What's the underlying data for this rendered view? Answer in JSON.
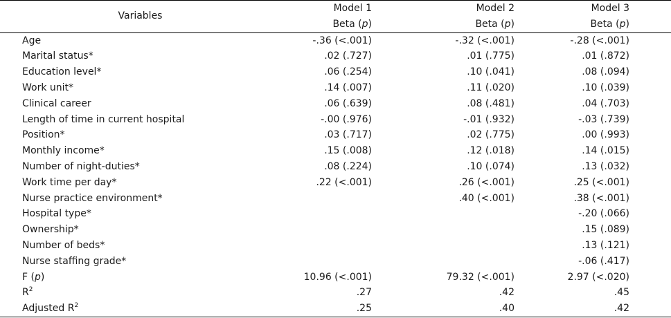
{
  "header": {
    "variables": "Variables",
    "models": [
      "Model 1",
      "Model 2",
      "Model 3"
    ],
    "beta_label": "Beta (",
    "p_label": "p",
    "beta_close": ")"
  },
  "rows": [
    {
      "label": "Age",
      "m1": "-.36 (<.001)",
      "m2": "-.32 (<.001)",
      "m3": "-.28 (<.001)"
    },
    {
      "label": "Marital status*",
      "m1": ".02 (.727)",
      "m2": ".01 (.775)",
      "m3": ".01 (.872)"
    },
    {
      "label": "Education level*",
      "m1": ".06 (.254)",
      "m2": ".10 (.041)",
      "m3": ".08 (.094)"
    },
    {
      "label": "Work unit*",
      "m1": ".14 (.007)",
      "m2": ".11 (.020)",
      "m3": ".10 (.039)"
    },
    {
      "label": "Clinical career",
      "m1": ".06 (.639)",
      "m2": ".08 (.481)",
      "m3": ".04 (.703)"
    },
    {
      "label": "Length of time in current hospital",
      "m1": "-.00 (.976)",
      "m2": "-.01 (.932)",
      "m3": "-.03 (.739)"
    },
    {
      "label": "Position*",
      "m1": ".03 (.717)",
      "m2": ".02 (.775)",
      "m3": ".00 (.993)"
    },
    {
      "label": "Monthly income*",
      "m1": ".15 (.008)",
      "m2": ".12 (.018)",
      "m3": ".14 (.015)"
    },
    {
      "label": "Number of night-duties*",
      "m1": ".08 (.224)",
      "m2": ".10 (.074)",
      "m3": ".13 (.032)"
    },
    {
      "label": "Work time per day*",
      "m1": ".22 (<.001)",
      "m2": ".26 (<.001)",
      "m3": ".25 (<.001)"
    },
    {
      "label": "Nurse practice environment*",
      "m1": "",
      "m2": ".40 (<.001)",
      "m3": ".38 (<.001)"
    },
    {
      "label": "Hospital type*",
      "m1": "",
      "m2": "",
      "m3": "-.20 (.066)"
    },
    {
      "label": "Ownership*",
      "m1": "",
      "m2": "",
      "m3": ".15 (.089)"
    },
    {
      "label": "Number of beds*",
      "m1": "",
      "m2": "",
      "m3": ".13 (.121)"
    },
    {
      "label": "Nurse staffing grade*",
      "m1": "",
      "m2": "",
      "m3": "-.06 (.417)"
    }
  ],
  "f_row": {
    "label": "F (",
    "p": "p",
    "close": ")",
    "m1": "10.96 (<.001)",
    "m2": "79.32 (<.001)",
    "m3": "2.97 (<.020)"
  },
  "r2_row": {
    "label": "R",
    "sup": "2",
    "m1": ".27",
    "m2": ".42",
    "m3": ".45"
  },
  "adj_r2_row": {
    "label": "Adjusted R",
    "sup": "2",
    "m1": ".25",
    "m2": ".40",
    "m3": ".42"
  }
}
